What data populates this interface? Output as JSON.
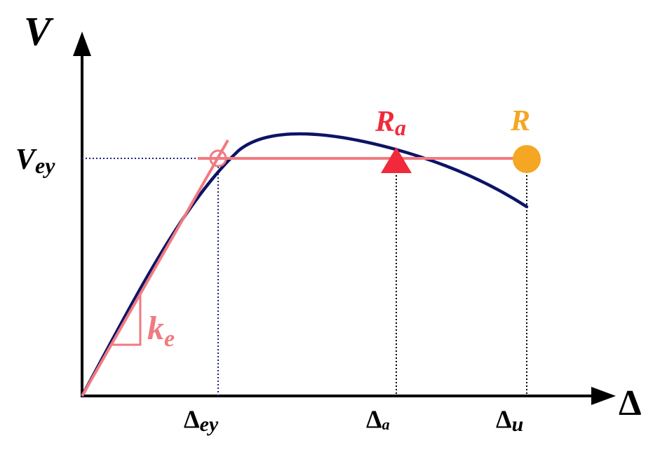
{
  "axes": {
    "y_label": "V",
    "x_label": "Δ"
  },
  "labels": {
    "v_ey_main": "V",
    "v_ey_sub": "ey",
    "d_ey_main": "Δ",
    "d_ey_sub": "ey",
    "d_a_main": "Δ",
    "d_a_sub": "a",
    "d_u_main": "Δ",
    "d_u_sub": "u",
    "ra_main": "R",
    "ra_sub": "a",
    "r": "R",
    "ke_main": "k",
    "ke_sub": "e"
  },
  "colors": {
    "axis": "#000000",
    "curve": "#0d1466",
    "bilinear": "#f07a80",
    "ra": "#f02a3a",
    "r": "#f5a623",
    "guide_v": "#1a237e",
    "guide_u": "#000000"
  }
}
